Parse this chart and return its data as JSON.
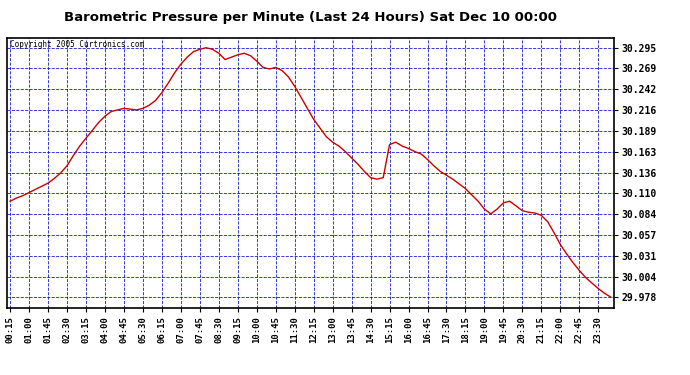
{
  "title": "Barometric Pressure per Minute (Last 24 Hours) Sat Dec 10 00:00",
  "copyright": "Copyright 2005 Curtronics.com",
  "background_color": "#ffffff",
  "plot_background": "#ffffff",
  "line_color": "#cc0000",
  "grid_color": "#0000cc",
  "yticks": [
    29.978,
    30.004,
    30.031,
    30.057,
    30.084,
    30.11,
    30.136,
    30.163,
    30.189,
    30.216,
    30.242,
    30.269,
    30.295
  ],
  "ylim": [
    29.965,
    30.308
  ],
  "xtick_labels": [
    "00:15",
    "01:00",
    "01:45",
    "02:30",
    "03:15",
    "04:00",
    "04:45",
    "05:30",
    "06:15",
    "07:00",
    "07:45",
    "08:30",
    "09:15",
    "10:00",
    "10:45",
    "11:30",
    "12:15",
    "13:00",
    "13:45",
    "14:30",
    "15:15",
    "16:00",
    "16:45",
    "17:30",
    "18:15",
    "19:00",
    "19:45",
    "20:30",
    "21:15",
    "22:00",
    "22:45",
    "23:30"
  ],
  "data_y": [
    30.1,
    30.104,
    30.107,
    30.111,
    30.115,
    30.119,
    30.123,
    30.129,
    30.136,
    30.145,
    30.158,
    30.17,
    30.18,
    30.19,
    30.2,
    30.208,
    30.214,
    30.216,
    30.218,
    30.217,
    30.216,
    30.218,
    30.222,
    30.228,
    30.238,
    30.25,
    30.263,
    30.274,
    30.283,
    30.29,
    30.293,
    30.295,
    30.293,
    30.288,
    30.28,
    30.283,
    30.286,
    30.288,
    30.285,
    30.278,
    30.27,
    30.268,
    30.27,
    30.266,
    30.258,
    30.246,
    30.232,
    30.218,
    30.204,
    30.193,
    30.182,
    30.175,
    30.17,
    30.163,
    30.155,
    30.147,
    30.138,
    30.13,
    30.128,
    30.13,
    30.172,
    30.175,
    30.17,
    30.167,
    30.163,
    30.16,
    30.153,
    30.145,
    30.138,
    30.133,
    30.128,
    30.122,
    30.116,
    30.108,
    30.1,
    30.09,
    30.084,
    30.09,
    30.098,
    30.1,
    30.094,
    30.088,
    30.086,
    30.085,
    30.082,
    30.074,
    30.06,
    30.045,
    30.033,
    30.022,
    30.012,
    30.003,
    29.996,
    29.989,
    29.983,
    29.978
  ]
}
